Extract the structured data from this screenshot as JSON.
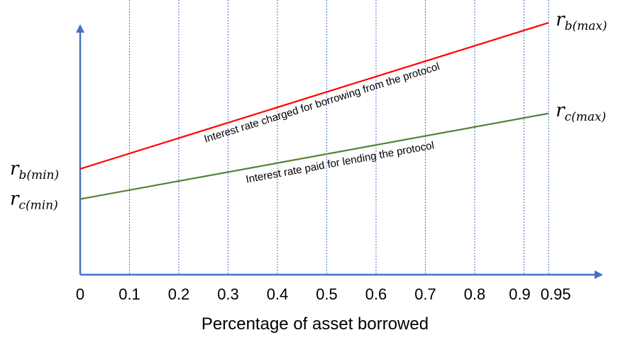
{
  "chart_data": {
    "type": "line",
    "xlabel": "Percentage of asset borrowed",
    "ylabel": "",
    "x_ticks": [
      0,
      0.1,
      0.2,
      0.3,
      0.4,
      0.5,
      0.6,
      0.7,
      0.8,
      0.9,
      0.95
    ],
    "x_tick_labels": [
      "0",
      "0.1",
      "0.2",
      "0.3",
      "0.4",
      "0.5",
      "0.6",
      "0.7",
      "0.8",
      "0.9",
      "0.95"
    ],
    "grid": "vertical dotted",
    "series": [
      {
        "label": "Interest rate charged for borrowing from the protocol",
        "color": "#ff0000",
        "x": [
          0,
          0.95
        ],
        "y_rel": [
          0.42,
          1.0
        ],
        "start_label": {
          "main": "r",
          "sub": "b(min)"
        },
        "end_label": {
          "main": "r",
          "sub": "b(max)"
        }
      },
      {
        "label": "Interest rate paid for lending the protocol",
        "color": "#548235",
        "x": [
          0,
          0.95
        ],
        "y_rel": [
          0.3,
          0.64
        ],
        "start_label": {
          "main": "r",
          "sub": "c(min)"
        },
        "end_label": {
          "main": "r",
          "sub": "c(max)"
        }
      }
    ],
    "axis_color": "#4472c4",
    "grid_color": "#4472c4"
  }
}
